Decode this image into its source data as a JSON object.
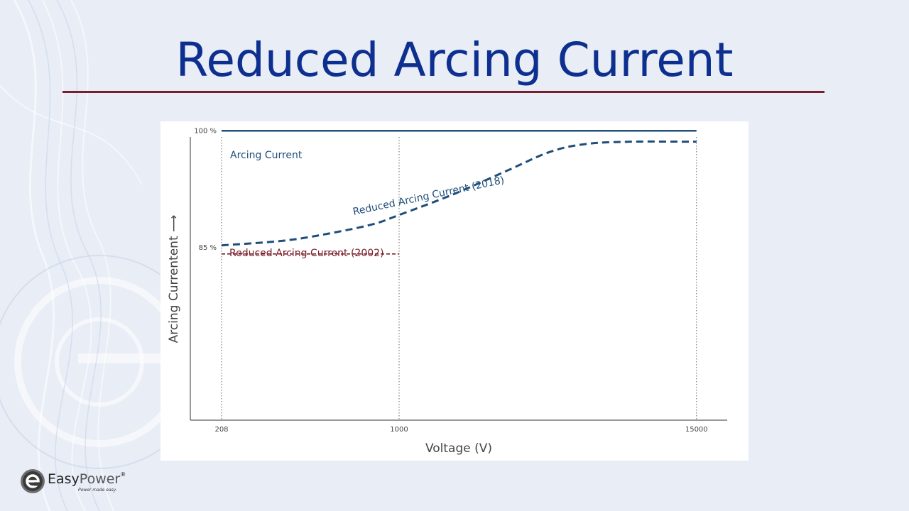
{
  "slide": {
    "title": "Reduced Arcing Current",
    "colors": {
      "title": "#0d2f8f",
      "rule": "#7a1f2a",
      "blue_series": "#1f4e79",
      "red_series": "#7a1f2a"
    }
  },
  "logo": {
    "name_prefix": "Easy",
    "name_suffix": "Power",
    "registered_mark": "®",
    "tagline": "Power made easy.",
    "icon": "easypower-e-logo-icon"
  },
  "chart_data": {
    "type": "line",
    "title": "",
    "xlabel": "Voltage (V)",
    "ylabel": "Arcing Currentent ⟶",
    "x_ticks": [
      "208",
      "1000",
      "15000"
    ],
    "y_ticks": [
      "100 %",
      "85 %"
    ],
    "xlim": [
      0,
      3
    ],
    "ylim": [
      40,
      105
    ],
    "x_gridlines_at_ticks": true,
    "series": [
      {
        "name": "Arcing Current",
        "style": "solid",
        "color": "#1f4e79",
        "points": [
          [
            0,
            100
          ],
          [
            2.675,
            100
          ]
        ]
      },
      {
        "name": "Reduced Arcing Current (2018)",
        "style": "dashed",
        "color": "#1f4e79",
        "points": [
          [
            0,
            85.3
          ],
          [
            0.35,
            85.9
          ],
          [
            0.6,
            86.8
          ],
          [
            0.85,
            88.0
          ],
          [
            1.0,
            89.2
          ],
          [
            1.3,
            91.8
          ],
          [
            1.6,
            94.8
          ],
          [
            1.85,
            97.3
          ],
          [
            2.05,
            98.3
          ],
          [
            2.3,
            98.6
          ],
          [
            2.675,
            98.6
          ]
        ]
      },
      {
        "name": "Reduced Arcing Current (2002)",
        "style": "dashed",
        "color": "#7a1f2a",
        "points": [
          [
            0,
            84.2
          ],
          [
            1.0,
            84.2
          ]
        ]
      }
    ]
  }
}
